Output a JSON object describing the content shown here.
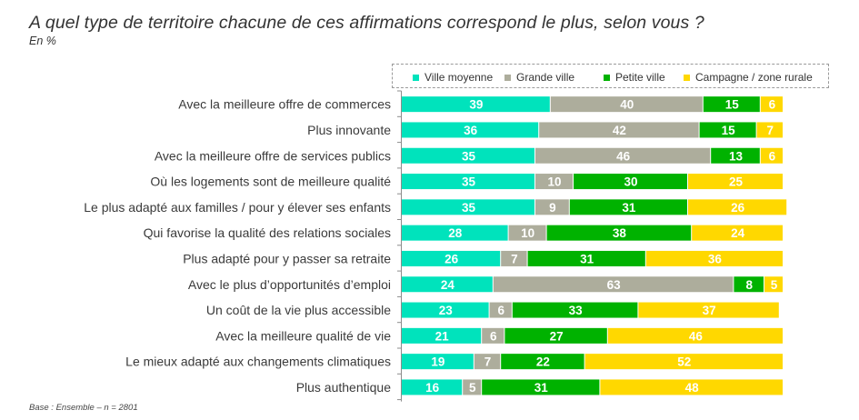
{
  "chart_data": {
    "type": "bar",
    "orientation": "horizontal",
    "stacked": true,
    "title": "A quel type de territoire chacune de ces affirmations correspond le plus, selon vous ?",
    "subtitle": "En %",
    "xlabel": "",
    "ylabel": "",
    "xlim": [
      0,
      100
    ],
    "grid": false,
    "legend_position": "top-right",
    "footnote": "Base : Ensemble – n = 2801",
    "categories": [
      "Avec la meilleure offre de commerces",
      "Plus innovante",
      "Avec la meilleure offre de services publics",
      "Où les logements sont de meilleure qualité",
      "Le plus adapté aux familles / pour y élever ses enfants",
      "Qui favorise la qualité des relations sociales",
      "Plus adapté pour y passer sa retraite",
      "Avec le plus d’opportunités d’emploi",
      "Un coût de la vie plus accessible",
      "Avec la meilleure qualité de vie",
      "Le mieux adapté aux changements climatiques",
      "Plus authentique"
    ],
    "series": [
      {
        "name": "Ville moyenne",
        "color": "#00E3BC",
        "values": [
          39,
          36,
          35,
          35,
          35,
          28,
          26,
          24,
          23,
          21,
          19,
          16
        ]
      },
      {
        "name": "Grande ville",
        "color": "#ADAD9C",
        "values": [
          40,
          42,
          46,
          10,
          9,
          10,
          7,
          63,
          6,
          6,
          7,
          5
        ]
      },
      {
        "name": "Petite ville",
        "color": "#00B200",
        "values": [
          15,
          15,
          13,
          30,
          31,
          38,
          31,
          8,
          33,
          27,
          22,
          31
        ]
      },
      {
        "name": "Campagne / zone rurale",
        "color": "#FFD800",
        "values": [
          6,
          7,
          6,
          25,
          26,
          24,
          36,
          5,
          37,
          46,
          52,
          48
        ]
      }
    ]
  }
}
